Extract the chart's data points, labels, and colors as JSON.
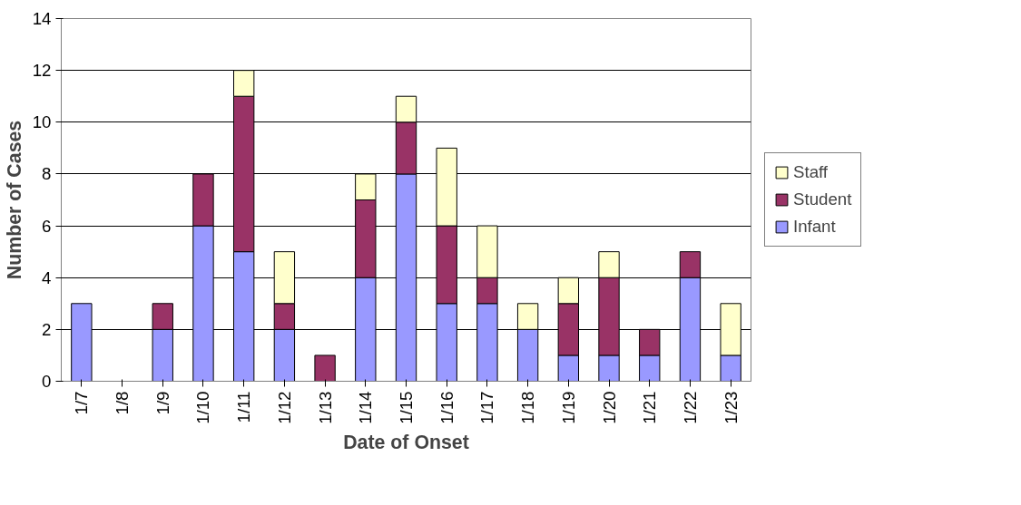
{
  "chart_data": {
    "type": "bar",
    "stacked": true,
    "xlabel": "Date of Onset",
    "ylabel": "Number of Cases",
    "categories": [
      "1/7",
      "1/8",
      "1/9",
      "1/10",
      "1/11",
      "1/12",
      "1/13",
      "1/14",
      "1/15",
      "1/16",
      "1/17",
      "1/18",
      "1/19",
      "1/20",
      "1/21",
      "1/22",
      "1/23"
    ],
    "series": [
      {
        "name": "Infant",
        "color": "#9999ff",
        "values": [
          3,
          0,
          2,
          6,
          5,
          2,
          0,
          4,
          8,
          3,
          3,
          2,
          1,
          1,
          1,
          4,
          1
        ]
      },
      {
        "name": "Student",
        "color": "#993366",
        "values": [
          0,
          0,
          1,
          2,
          6,
          1,
          1,
          3,
          2,
          3,
          1,
          0,
          2,
          3,
          1,
          1,
          0
        ]
      },
      {
        "name": "Staff",
        "color": "#ffffcc",
        "values": [
          0,
          0,
          0,
          0,
          1,
          2,
          0,
          1,
          1,
          3,
          2,
          1,
          1,
          1,
          0,
          0,
          2
        ]
      }
    ],
    "ylim": [
      0,
      14
    ],
    "yticks": [
      0,
      2,
      4,
      6,
      8,
      10,
      12,
      14
    ],
    "grid": "y",
    "legend": "right"
  }
}
